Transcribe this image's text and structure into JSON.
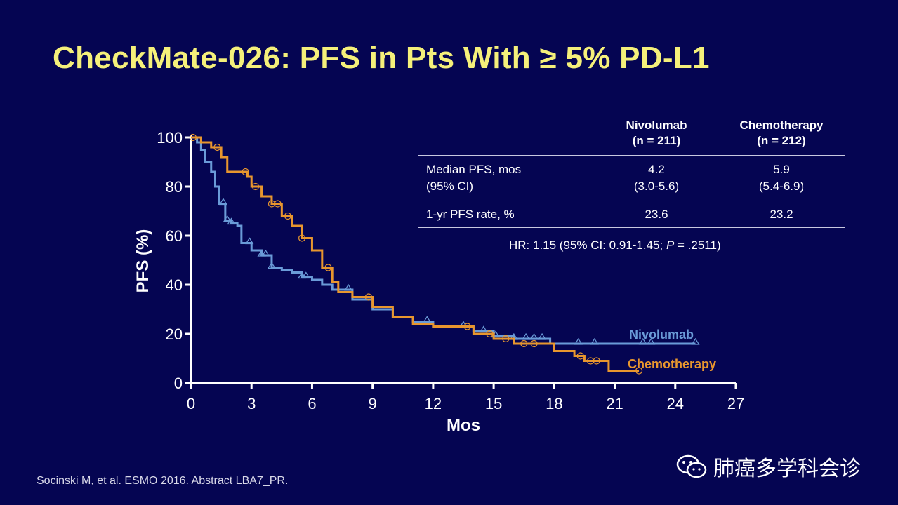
{
  "title": "CheckMate-026: PFS in Pts With ≥ 5% PD-L1",
  "table": {
    "col1_header": [
      "Nivolumab",
      "(n = 211)"
    ],
    "col2_header": [
      "Chemotherapy",
      "(n = 212)"
    ],
    "rows": [
      {
        "label": [
          "Median PFS, mos",
          "(95% CI)"
        ],
        "nivo": [
          "4.2",
          "(3.0-5.6)"
        ],
        "chemo": [
          "5.9",
          "(5.4-6.9)"
        ]
      },
      {
        "label": [
          "1-yr PFS rate, %"
        ],
        "nivo": [
          "23.6"
        ],
        "chemo": [
          "23.2"
        ]
      }
    ],
    "hr_prefix": "HR: 1.15 (95% CI: 0.91-1.45; ",
    "hr_p": "P",
    "hr_suffix": " = .2511)"
  },
  "citation": "Socinski M, et al. ESMO 2016. Abstract LBA7_PR.",
  "watermark": "肺癌多学科会诊",
  "colors": {
    "nivolumab": "#6a9bd8",
    "chemotherapy": "#e8962e",
    "title": "#f5f07a",
    "background": "#050552"
  },
  "chart_data": {
    "type": "line",
    "subtype": "kaplan-meier step",
    "xlabel": "Mos",
    "ylabel": "PFS (%)",
    "xlim": [
      0,
      27
    ],
    "ylim": [
      0,
      100
    ],
    "xticks": [
      0,
      3,
      6,
      9,
      12,
      15,
      18,
      21,
      24,
      27
    ],
    "yticks": [
      0,
      20,
      40,
      60,
      80,
      100
    ],
    "grid": false,
    "series": [
      {
        "name": "Nivolumab",
        "label": "Nivolumab",
        "x": [
          0,
          0.3,
          0.5,
          0.7,
          1.0,
          1.2,
          1.4,
          1.7,
          2.0,
          2.3,
          2.5,
          3.0,
          3.5,
          4.0,
          4.5,
          5.0,
          5.5,
          6.0,
          6.5,
          7.0,
          8.0,
          9.0,
          10.0,
          11.0,
          12.0,
          14.0,
          15.0,
          16.0,
          17.8,
          25.0
        ],
        "y": [
          100,
          98,
          95,
          90,
          86,
          80,
          73,
          66,
          65,
          64,
          57,
          54,
          52,
          47,
          46,
          45,
          43,
          42,
          40,
          38,
          34,
          30,
          27,
          25,
          23,
          21,
          19,
          18,
          16,
          16
        ],
        "censored_x": [
          1.6,
          1.8,
          2.0,
          2.9,
          3.5,
          3.7,
          4.0,
          5.5,
          5.7,
          7.8,
          11.7,
          13.5,
          14.5,
          15.1,
          16,
          16.6,
          17,
          17.4,
          19.2,
          20,
          22.4,
          22.8,
          25
        ]
      },
      {
        "name": "Chemotherapy",
        "label": "Chemotherapy",
        "x": [
          0,
          0.5,
          1.0,
          1.5,
          1.8,
          2.8,
          3.0,
          3.5,
          4.0,
          4.5,
          5.0,
          5.5,
          6.0,
          6.5,
          7.0,
          7.3,
          8.0,
          9.0,
          10.0,
          11.0,
          12.0,
          14.0,
          15.0,
          16.0,
          18.0,
          19.0,
          19.5,
          20.7,
          22.2
        ],
        "y": [
          100,
          98,
          96,
          92,
          86,
          84,
          80,
          76,
          73,
          68,
          64,
          59,
          54,
          47,
          41,
          37,
          35,
          31,
          27,
          24,
          23,
          20,
          18,
          16,
          13,
          11,
          9,
          5,
          5
        ],
        "censored_x": [
          0.1,
          1.3,
          2.7,
          3.2,
          4.0,
          4.3,
          4.8,
          5.5,
          6.8,
          8.8,
          13.7,
          14.8,
          15.6,
          16.5,
          17.0,
          19.3,
          19.8,
          20.1,
          22.2
        ]
      }
    ]
  }
}
